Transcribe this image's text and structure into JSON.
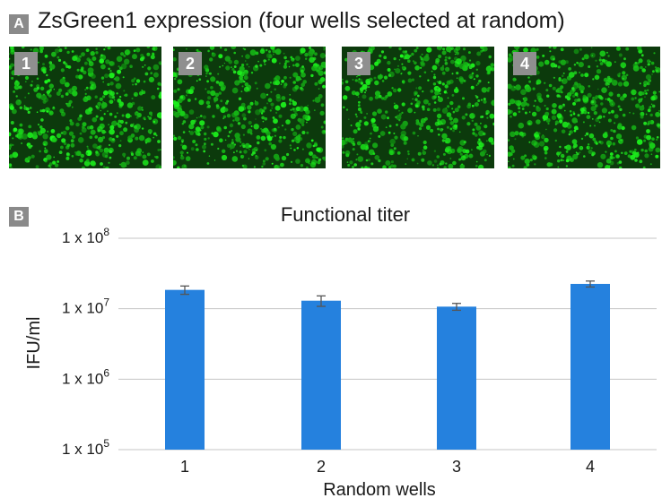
{
  "panel_a": {
    "letter": "A",
    "title": "ZsGreen1 expression (four wells selected at random)",
    "wells": [
      {
        "label": "1",
        "seed": 11
      },
      {
        "label": "2",
        "seed": 23
      },
      {
        "label": "3",
        "seed": 37
      },
      {
        "label": "4",
        "seed": 51
      }
    ],
    "fluorescence_color": "#22e022",
    "background_color": "#0c3a0c"
  },
  "panel_b": {
    "letter": "B"
  },
  "chart_data": {
    "type": "bar",
    "title": "Functional titer",
    "xlabel": "Random wells",
    "ylabel": "IFU/ml",
    "y_scale": "log",
    "ylim": [
      100000,
      100000000
    ],
    "yticks": [
      {
        "value": 100000,
        "base": "1 x 10",
        "exp": "5"
      },
      {
        "value": 1000000,
        "base": "1 x 10",
        "exp": "6"
      },
      {
        "value": 10000000,
        "base": "1 x 10",
        "exp": "7"
      },
      {
        "value": 100000000,
        "base": "1 x 10",
        "exp": "8"
      }
    ],
    "categories": [
      "1",
      "2",
      "3",
      "4"
    ],
    "values": [
      18500000,
      13000000,
      10700000,
      22500000
    ],
    "errors": [
      2500000,
      2200000,
      1200000,
      2200000
    ],
    "bar_color": "#2581de",
    "grid": true
  }
}
